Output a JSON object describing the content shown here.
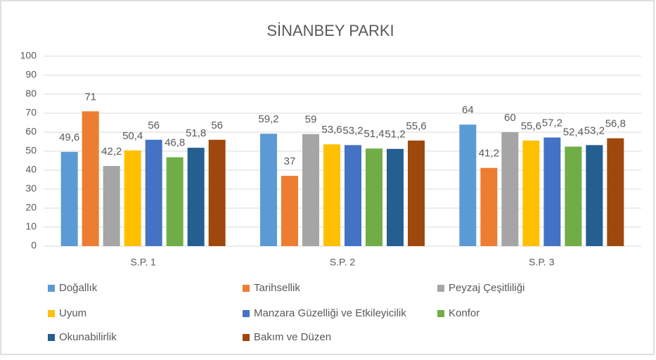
{
  "chart_data": {
    "type": "bar",
    "title": "SİNANBEY PARKI",
    "categories": [
      "S.P. 1",
      "S.P. 2",
      "S.P. 3"
    ],
    "series": [
      {
        "name": "Doğallık",
        "color": "#5b9bd5",
        "values": [
          49.6,
          59.2,
          64
        ],
        "value_labels": [
          "49,6",
          "59,2",
          "64"
        ]
      },
      {
        "name": "Tarihsellik",
        "color": "#ed7d31",
        "values": [
          71,
          37,
          41.2
        ],
        "value_labels": [
          "71",
          "37",
          "41,2"
        ]
      },
      {
        "name": "Peyzaj Çeşitliliği",
        "color": "#a5a5a5",
        "values": [
          42.2,
          59,
          60
        ],
        "value_labels": [
          "42,2",
          "59",
          "60"
        ]
      },
      {
        "name": "Uyum",
        "color": "#ffc000",
        "values": [
          50.4,
          53.6,
          55.6
        ],
        "value_labels": [
          "50,4",
          "53,6",
          "55,6"
        ]
      },
      {
        "name": "Manzara Güzelliği ve Etkileyicilik",
        "color": "#4472c4",
        "values": [
          56,
          53.2,
          57.2
        ],
        "value_labels": [
          "56",
          "53,2",
          "57,2"
        ]
      },
      {
        "name": "Konfor",
        "color": "#70ad47",
        "values": [
          46.8,
          51.4,
          52.4
        ],
        "value_labels": [
          "46,8",
          "51,4",
          "52,4"
        ]
      },
      {
        "name": "Okunabilirlik",
        "color": "#255e91",
        "values": [
          51.8,
          51.2,
          53.2
        ],
        "value_labels": [
          "51,8",
          "51,2",
          "53,2"
        ]
      },
      {
        "name": "Bakım ve Düzen",
        "color": "#9e480e",
        "values": [
          56,
          55.6,
          56.8
        ],
        "value_labels": [
          "56",
          "55,6",
          "56,8"
        ]
      }
    ],
    "ylim": [
      0,
      100
    ],
    "yticks": [
      0,
      10,
      20,
      30,
      40,
      50,
      60,
      70,
      80,
      90,
      100
    ],
    "grid": true,
    "legend": "bottom"
  }
}
